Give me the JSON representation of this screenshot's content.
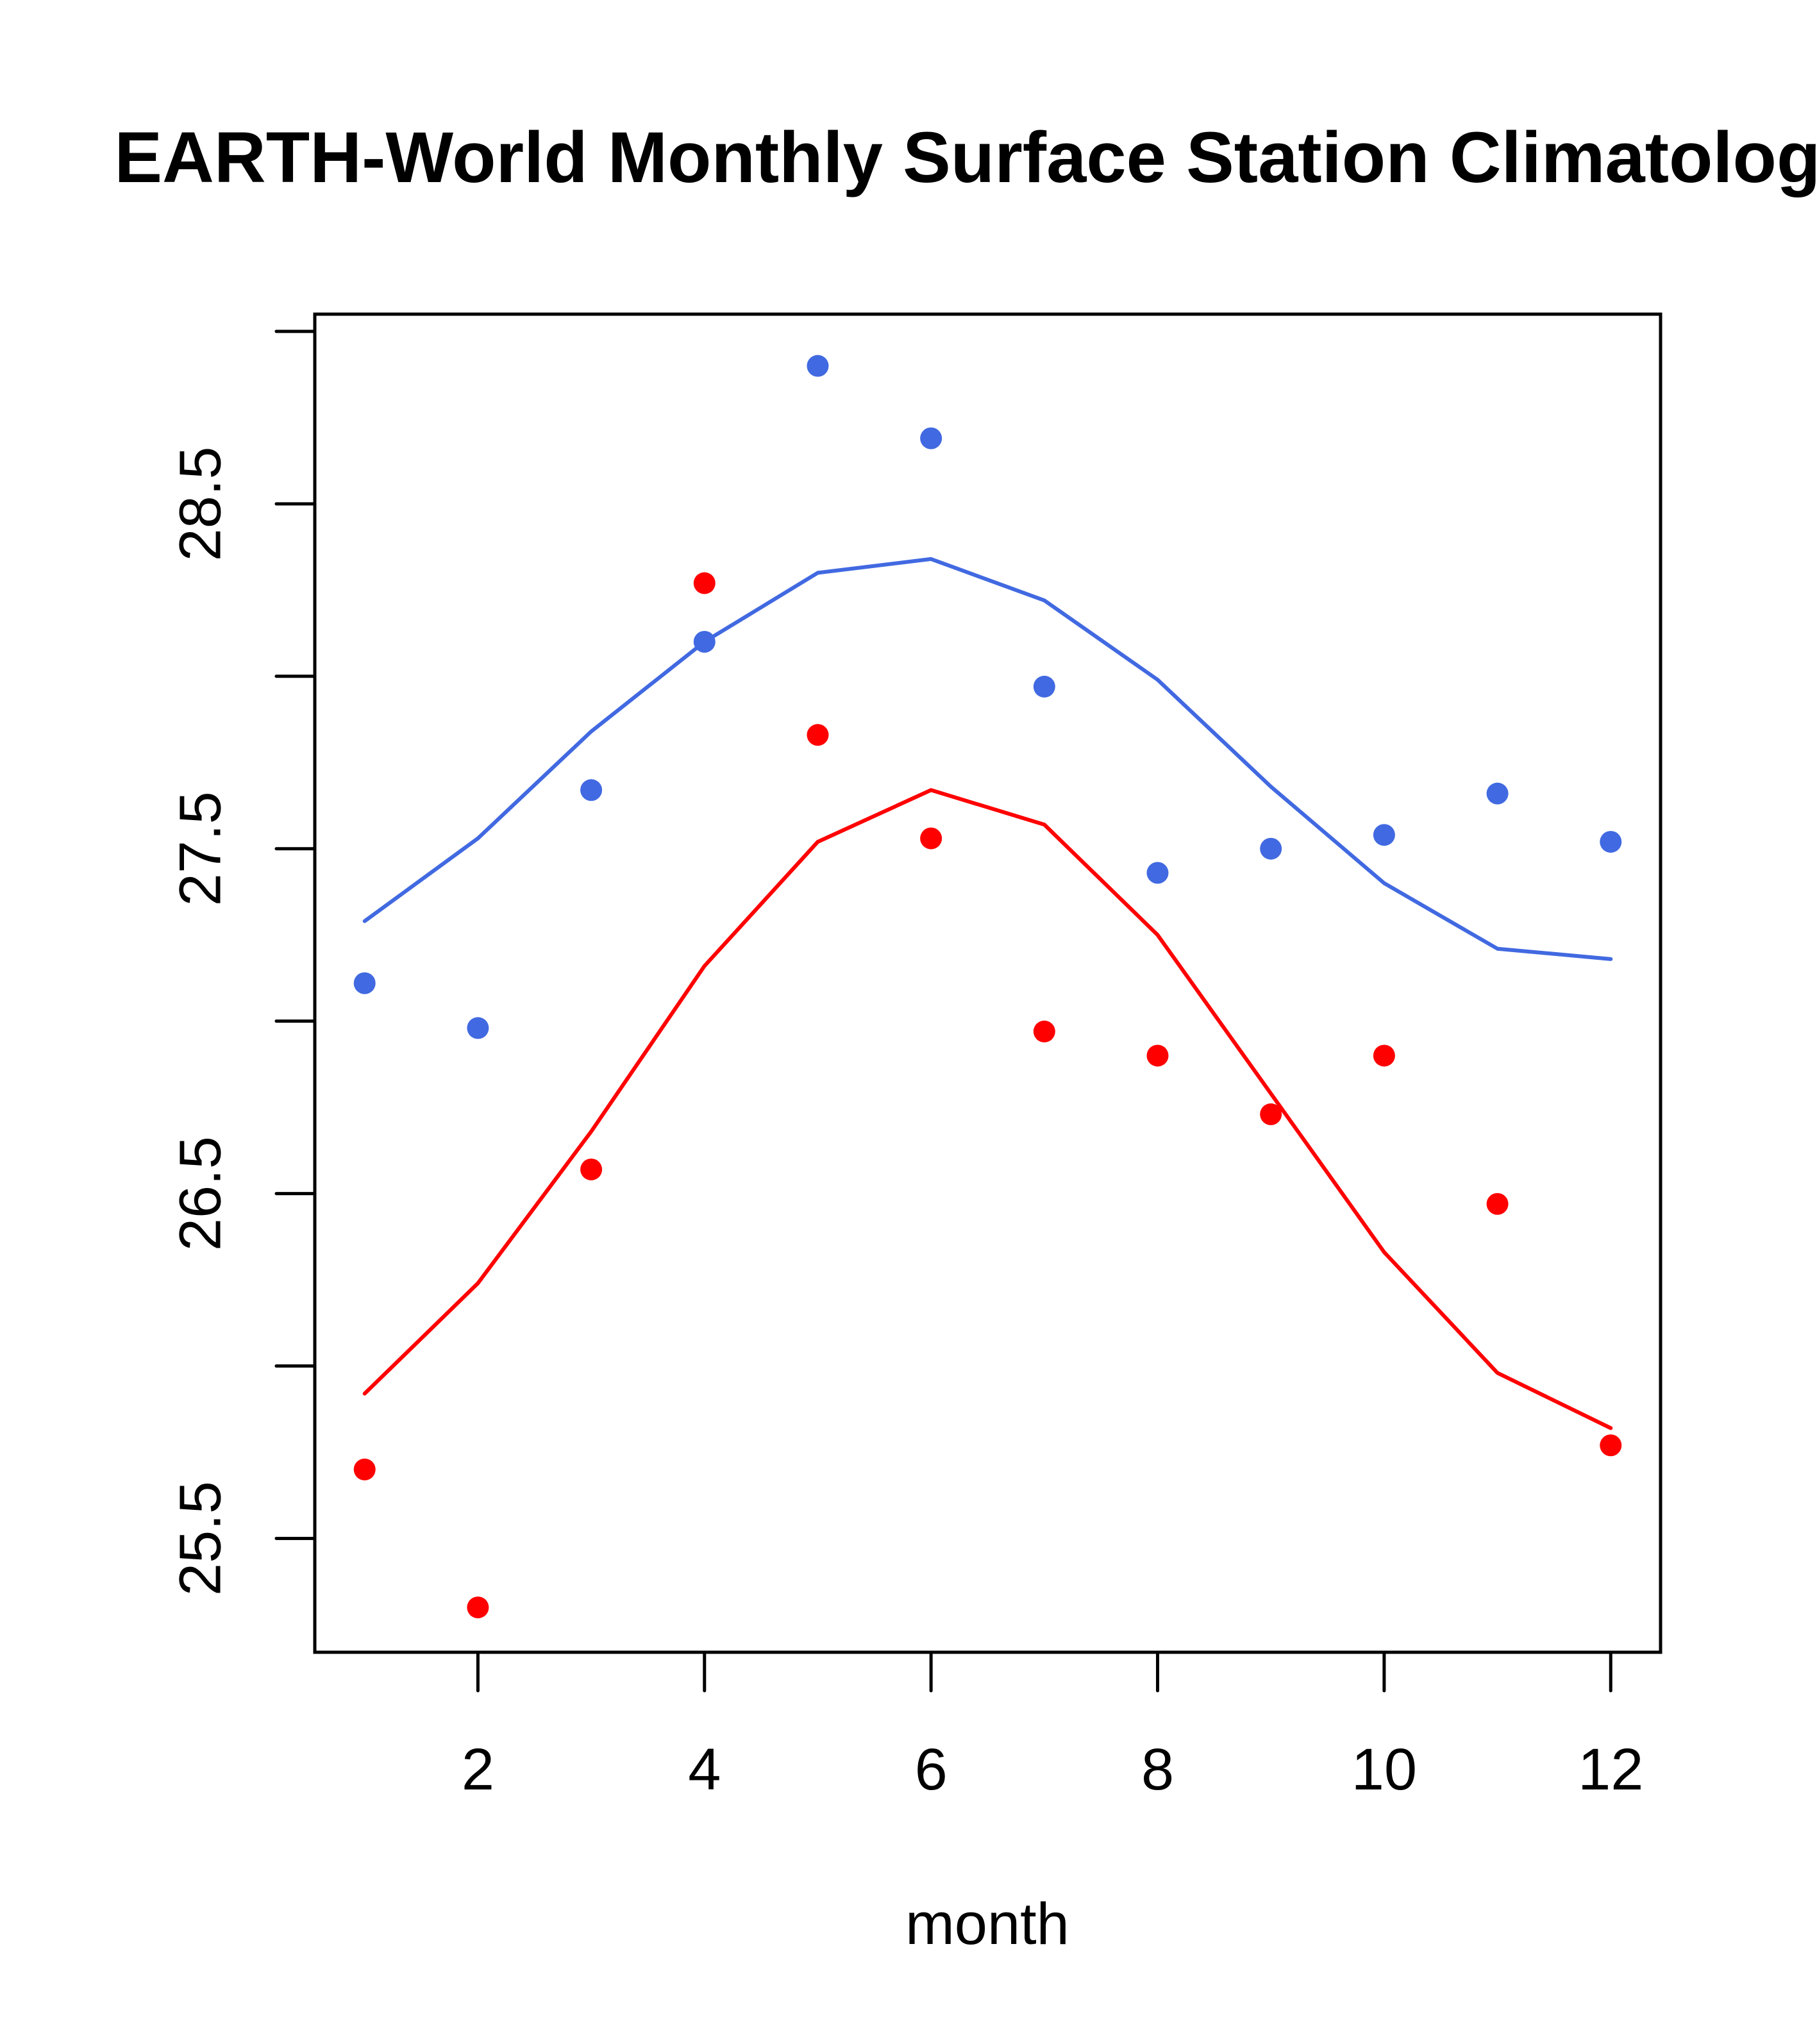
{
  "chart_data": {
    "type": "line",
    "title": "EARTH-World Monthly Surface Station Climatology",
    "xlabel": "month",
    "ylabel": "",
    "xlim": [
      0.56,
      12.44
    ],
    "ylim": [
      25.17,
      29.05
    ],
    "x_ticks": [
      2,
      4,
      6,
      8,
      10,
      12
    ],
    "x_tick_labels": [
      "2",
      "4",
      "6",
      "8",
      "10",
      "12"
    ],
    "y_ticks": [
      25.5,
      26.0,
      26.5,
      27.0,
      27.5,
      28.0,
      28.5,
      29.0
    ],
    "y_tick_labels": [
      "25.5",
      "",
      "26.5",
      "",
      "27.5",
      "",
      "28.5",
      ""
    ],
    "grid": false,
    "legend": null,
    "x": [
      1,
      2,
      3,
      4,
      5,
      6,
      7,
      8,
      9,
      10,
      11,
      12
    ],
    "series": [
      {
        "name": "blue-points",
        "kind": "points",
        "color": "#4169E1",
        "values": [
          27.11,
          26.98,
          27.67,
          28.1,
          28.9,
          28.69,
          27.97,
          27.43,
          27.5,
          27.54,
          27.66,
          27.52
        ]
      },
      {
        "name": "blue-line",
        "kind": "line",
        "color": "#4169E1",
        "values": [
          27.29,
          27.53,
          27.84,
          28.1,
          28.3,
          28.34,
          28.22,
          27.99,
          27.68,
          27.4,
          27.21,
          27.18
        ]
      },
      {
        "name": "red-points",
        "kind": "points",
        "color": "#FF0000",
        "values": [
          25.7,
          25.3,
          26.57,
          28.27,
          27.83,
          27.53,
          26.97,
          26.9,
          26.73,
          26.9,
          26.47,
          25.77
        ]
      },
      {
        "name": "red-line",
        "kind": "line",
        "color": "#FF0000",
        "values": [
          25.92,
          26.24,
          26.68,
          27.16,
          27.52,
          27.67,
          27.57,
          27.25,
          26.79,
          26.33,
          25.98,
          25.82
        ]
      }
    ]
  }
}
